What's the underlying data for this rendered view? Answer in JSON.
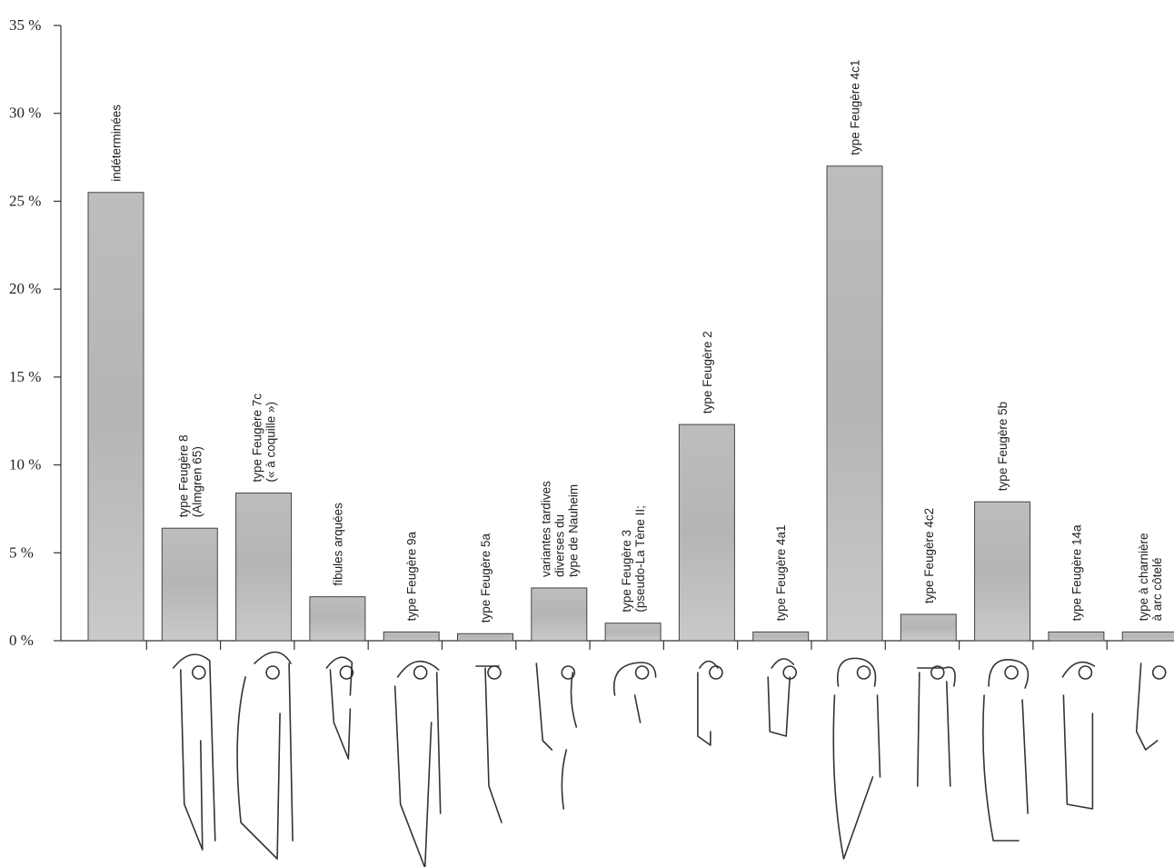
{
  "chart_data": {
    "type": "bar",
    "ylim": [
      0,
      35
    ],
    "yticks": [
      0,
      5,
      10,
      15,
      20,
      25,
      30,
      35
    ],
    "ytick_labels": [
      "0 %",
      "5 %",
      "10 %",
      "15 %",
      "20 %",
      "25 %",
      "30 %",
      "35 %"
    ],
    "grid": false,
    "legend": "none",
    "categories": [
      [
        "indéterminées"
      ],
      [
        "type  Feugère 8",
        "(Almgren 65)"
      ],
      [
        "type  Feugère 7c",
        "(« à coquille »)"
      ],
      [
        "fibules arquées"
      ],
      [
        "type  Feugère 9a"
      ],
      [
        "type  Feugère 5a"
      ],
      [
        "variantes tardives",
        "diverses du",
        "type de Nauheim"
      ],
      [
        "type  Feugère 3",
        "(pseudo-La Tène II;"
      ],
      [
        "type  Feugère 2"
      ],
      [
        "type  Feugère 4a1"
      ],
      [
        "type  Feugère 4c1"
      ],
      [
        "type  Feugère 4c2"
      ],
      [
        "type  Feugère 5b"
      ],
      [
        "type  Feugère 14a"
      ],
      [
        "type  à charnière",
        "à arc côtelé"
      ]
    ],
    "values": [
      25.5,
      6.4,
      8.4,
      2.5,
      0.5,
      0.4,
      3.0,
      1.0,
      12.3,
      0.5,
      27.0,
      1.5,
      7.9,
      0.5,
      0.5
    ],
    "bar_color": "#c7c7c7",
    "bar_shade_color": "#b3b3b3"
  }
}
